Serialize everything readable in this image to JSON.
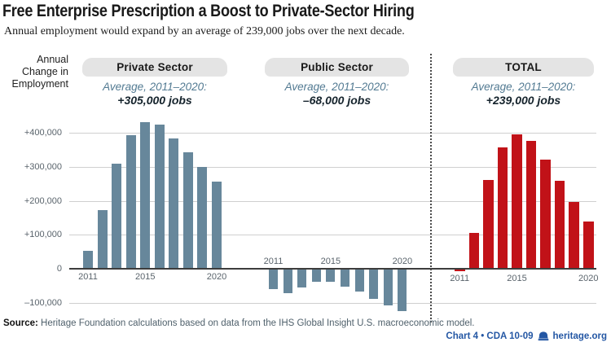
{
  "header": {
    "title": "Free Enterprise Prescription a Boost to Private-Sector Hiring",
    "subtitle": "Annual employment would expand by an average of 239,000 jobs over the next decade."
  },
  "y_axis": {
    "title_lines": [
      "Annual",
      "Change in",
      "Employment"
    ],
    "ticks": [
      {
        "label": "+400,000",
        "value": 400000
      },
      {
        "label": "+300,000",
        "value": 300000
      },
      {
        "label": "+200,000",
        "value": 200000
      },
      {
        "label": "+100,000",
        "value": 100000
      },
      {
        "label": "0",
        "value": 0
      },
      {
        "label": "–100,000",
        "value": -100000
      }
    ]
  },
  "chart_data": {
    "type": "bar",
    "categories": [
      2011,
      2012,
      2013,
      2014,
      2015,
      2016,
      2017,
      2018,
      2019,
      2020
    ],
    "x_ticks": [
      {
        "index": 0,
        "label": "2011"
      },
      {
        "index": 4,
        "label": "2015"
      },
      {
        "index": 9,
        "label": "2020"
      }
    ],
    "ylim": [
      -130000,
      440000
    ],
    "grid": "horizontal",
    "legend": "none",
    "series": [
      {
        "name": "Private Sector",
        "period_label": "Average, 2011–2020:",
        "average_label": "+305,000 jobs",
        "average_value": 305000,
        "color": "#67879b",
        "values": [
          50000,
          170000,
          308000,
          392000,
          430000,
          422000,
          382000,
          340000,
          297000,
          255000
        ]
      },
      {
        "name": "Public Sector",
        "period_label": "Average, 2011–2020:",
        "average_label": "–68,000 jobs",
        "average_value": -68000,
        "color": "#67879b",
        "values": [
          -57000,
          -70000,
          -52000,
          -36000,
          -36000,
          -50000,
          -64000,
          -86000,
          -106000,
          -123000
        ]
      },
      {
        "name": "TOTAL",
        "period_label": "Average, 2011–2020:",
        "average_label": "+239,000 jobs",
        "average_value": 239000,
        "color": "#c11218",
        "values": [
          -5000,
          103000,
          258000,
          356000,
          393000,
          374000,
          319000,
          256000,
          194000,
          136000
        ]
      }
    ]
  },
  "footer": {
    "source_label": "Source:",
    "source_text": "Heritage Foundation calculations based on data from the IHS Global Insight U.S. macroeconomic model.",
    "credit": "Chart 4 • CDA 10-09",
    "site": "heritage.org"
  },
  "colors": {
    "private_bar": "#67879b",
    "total_bar": "#c11218",
    "pill_bg": "#e4e4e4",
    "gridline": "#cfcfcf",
    "zero_line": "#3d3d3d",
    "slate_italic_text": "#527a92",
    "credit_blue": "#2457a4"
  }
}
